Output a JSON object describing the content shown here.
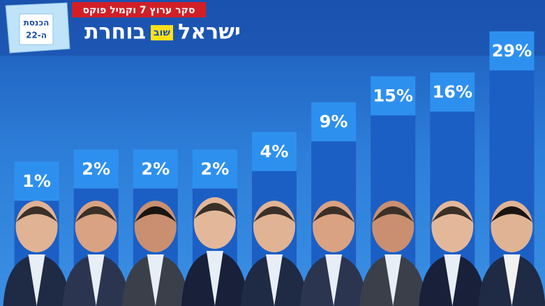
{
  "header": {
    "banner": "סקר ערוץ 7 וקמיל פוקס",
    "logo": [
      "ישראל",
      "שוב",
      "בוחרת"
    ],
    "ballot": [
      "הכנסת",
      "ה-22"
    ]
  },
  "chart_data": {
    "type": "bar",
    "categories": [
      null,
      null,
      null,
      null,
      null,
      null,
      null,
      null,
      null
    ],
    "values": [
      1,
      2,
      2,
      2,
      4,
      9,
      15,
      16,
      29
    ],
    "value_labels": [
      "1%",
      "2%",
      "2%",
      "2%",
      "4%",
      "9%",
      "15%",
      "16%",
      "29%"
    ],
    "color": "#1c5fc4",
    "label_color": "#2e90ee"
  }
}
